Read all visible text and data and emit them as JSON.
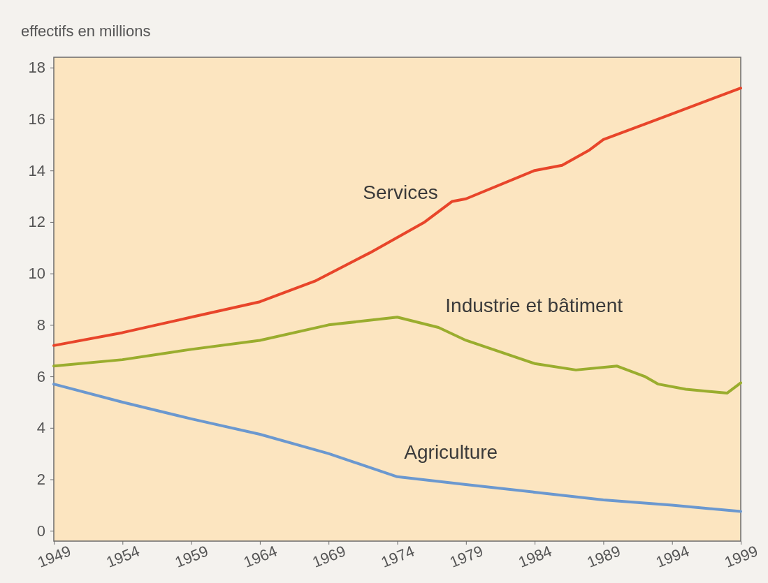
{
  "chart_data": {
    "type": "line",
    "ylabel": "effectifs en millions",
    "xlim": [
      1949,
      1999
    ],
    "xticks": [
      1949,
      1954,
      1959,
      1964,
      1969,
      1974,
      1979,
      1984,
      1989,
      1994,
      1999
    ],
    "ylim": [
      -0.4,
      18.4
    ],
    "yticks": [
      0,
      2,
      4,
      6,
      8,
      10,
      12,
      14,
      16,
      18
    ],
    "grid": false,
    "legend": false,
    "marker": "none",
    "line_style": "solid",
    "series": [
      {
        "name": "Services",
        "color": "#e8452a",
        "x": [
          1949,
          1954,
          1959,
          1964,
          1968,
          1972,
          1976,
          1978,
          1979,
          1984,
          1986,
          1988,
          1989,
          1992,
          1994,
          1999
        ],
        "values": [
          7.2,
          7.7,
          8.3,
          8.9,
          9.7,
          10.8,
          12.0,
          12.8,
          12.9,
          14.0,
          14.2,
          14.8,
          15.2,
          15.8,
          16.2,
          17.2
        ]
      },
      {
        "name": "Industrie et bâtiment",
        "color": "#9aad2e",
        "x": [
          1949,
          1954,
          1959,
          1964,
          1969,
          1974,
          1977,
          1979,
          1984,
          1987,
          1990,
          1992,
          1993,
          1995,
          1998,
          1999
        ],
        "values": [
          6.4,
          6.65,
          7.05,
          7.4,
          8.0,
          8.3,
          7.9,
          7.4,
          6.5,
          6.25,
          6.4,
          6.0,
          5.7,
          5.5,
          5.35,
          5.75
        ]
      },
      {
        "name": "Agriculture",
        "color": "#6b98cf",
        "x": [
          1949,
          1954,
          1959,
          1964,
          1969,
          1974,
          1979,
          1984,
          1989,
          1994,
          1999
        ],
        "values": [
          5.7,
          5.0,
          4.35,
          3.75,
          3.0,
          2.1,
          1.8,
          1.5,
          1.2,
          1.0,
          0.75
        ]
      }
    ]
  }
}
